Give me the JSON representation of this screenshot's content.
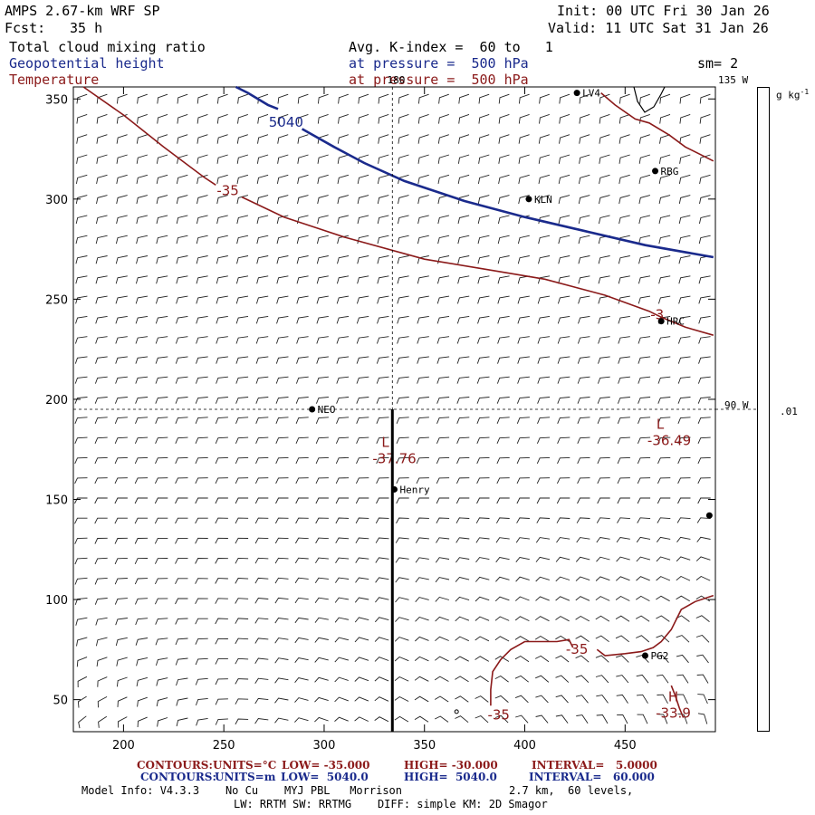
{
  "header": {
    "model": "AMPS 2.67-km WRF SP",
    "init": "Init: 00 UTC Fri 30 Jan 26",
    "fcst_label": "Fcst:",
    "fcst_value": "35 h",
    "valid": "Valid: 11 UTC Sat 31 Jan 26",
    "field1": "Total cloud mixing ratio",
    "field2": "Geopotential height",
    "field3": "Temperature",
    "avg": "Avg. K-index =  60 to   1",
    "pressure1": "at pressure =  500 hPa",
    "pressure2": "at pressure =  500 hPa",
    "sm": "sm= 2"
  },
  "colorbar": {
    "unit": "g kg",
    "unit_exp": "-1",
    "tick": ".01"
  },
  "footer": {
    "c1_label": "CONTOURS:",
    "c1_units": "UNITS=°C",
    "c1_low": "LOW= -35.000",
    "c1_high": "HIGH= -30.000",
    "c1_interval": "INTERVAL=   5.0000",
    "c2_label": "CONTOURS:",
    "c2_units": "UNITS=m",
    "c2_low": "LOW=  5040.0",
    "c2_high": "HIGH=  5040.0",
    "c2_interval": "INTERVAL=   60.000",
    "model_info": "Model Info: V4.3.3    No Cu    MYJ PBL   Morrison",
    "resolution": "2.7 km,  60 levels,",
    "physics": "LW: RRTM SW: RRTMG    DIFF: simple KM: 2D Smagor"
  },
  "colors": {
    "height": "#1a2a8c",
    "temperature": "#8b1a1a",
    "text": "#000000"
  },
  "chart_data": {
    "type": "contour map",
    "grid": false,
    "xlim": [
      175,
      495
    ],
    "ylim": [
      34,
      356
    ],
    "xticks": [
      200,
      250,
      300,
      350,
      400,
      450
    ],
    "yticks": [
      50,
      100,
      150,
      200,
      250,
      300,
      350
    ],
    "lon_labels": [
      {
        "text": "180",
        "x": 335,
        "y": 356
      },
      {
        "text": "135 W",
        "x": 495,
        "y": 356
      },
      {
        "text": "90 W",
        "x": 495,
        "y": 195
      }
    ],
    "cross_section": {
      "x": 334,
      "y_from": 34,
      "y_to": 195
    },
    "graticule": {
      "vertical_x": 334,
      "horizontal_y": 195
    },
    "height_contours": [
      {
        "value": 5040,
        "label": "5040",
        "segments": [
          [
            [
              256,
              356
            ],
            [
              262,
              353
            ],
            [
              272,
              347
            ],
            [
              277,
              345
            ]
          ],
          [
            [
              289,
              335
            ],
            [
              305,
              326
            ],
            [
              320,
              318
            ],
            [
              340,
              309
            ],
            [
              370,
              299
            ],
            [
              400,
              291
            ],
            [
              430,
              284
            ],
            [
              460,
              277
            ],
            [
              494,
              271
            ]
          ]
        ]
      }
    ],
    "temperature_contours": [
      {
        "value": -35,
        "label": "-35",
        "location": "upper",
        "segments": [
          [
            [
              180,
              356
            ],
            [
              200,
              342
            ],
            [
              220,
              326
            ],
            [
              240,
              311
            ],
            [
              246,
              307
            ]
          ],
          [
            [
              259,
              301
            ],
            [
              280,
              291
            ],
            [
              310,
              281
            ],
            [
              350,
              270
            ],
            [
              380,
              265
            ],
            [
              410,
              260
            ],
            [
              440,
              252
            ],
            [
              462,
              244
            ],
            [
              468,
              241
            ],
            [
              480,
              236
            ],
            [
              494,
              232
            ]
          ]
        ]
      },
      {
        "value": -35,
        "label": "-35",
        "location": "upper-right corner",
        "segments": [
          [
            [
              438,
              353
            ],
            [
              445,
              347
            ],
            [
              455,
              340
            ],
            [
              462,
              338
            ],
            [
              472,
              332
            ],
            [
              480,
              326
            ],
            [
              494,
              319
            ]
          ]
        ]
      },
      {
        "value": -35,
        "label": "-35",
        "location": "lower right",
        "segments": [
          [
            [
              383,
              47
            ],
            [
              383,
              55
            ],
            [
              384,
              64
            ],
            [
              388,
              70
            ],
            [
              393,
              75
            ],
            [
              400,
              79
            ],
            [
              408,
              79
            ],
            [
              416,
              79
            ],
            [
              422,
              80
            ],
            [
              424,
              76
            ]
          ],
          [
            [
              436,
              75
            ],
            [
              440,
              72
            ],
            [
              450,
              73
            ],
            [
              458,
              74
            ],
            [
              464,
              76
            ],
            [
              468,
              79
            ],
            [
              473,
              85
            ],
            [
              478,
              95
            ],
            [
              485,
              99
            ],
            [
              494,
              102
            ]
          ],
          [
            [
              473,
              57
            ],
            [
              475,
              52
            ],
            [
              477,
              46
            ],
            [
              479,
              41
            ]
          ]
        ]
      }
    ],
    "extrema": [
      {
        "type": "L",
        "value": "-37.76",
        "x": 335,
        "y": 169
      },
      {
        "type": "L",
        "value": "-36.49",
        "x": 472,
        "y": 178
      },
      {
        "type": "H",
        "value": "-33.9",
        "x": 474,
        "y": 42
      }
    ],
    "stations": [
      {
        "name": "LV4",
        "x": 426,
        "y": 353
      },
      {
        "name": "RBG",
        "x": 465,
        "y": 314
      },
      {
        "name": "KLN",
        "x": 402,
        "y": 300
      },
      {
        "name": "HRC",
        "x": 468,
        "y": 239
      },
      {
        "name": "NEO",
        "x": 294,
        "y": 195
      },
      {
        "name": "Henry",
        "x": 335,
        "y": 155
      },
      {
        "name": "PG2",
        "x": 460,
        "y": 72
      },
      {
        "name": "",
        "x": 492,
        "y": 142
      }
    ],
    "small_marker": {
      "x": 366,
      "y": 44
    }
  }
}
